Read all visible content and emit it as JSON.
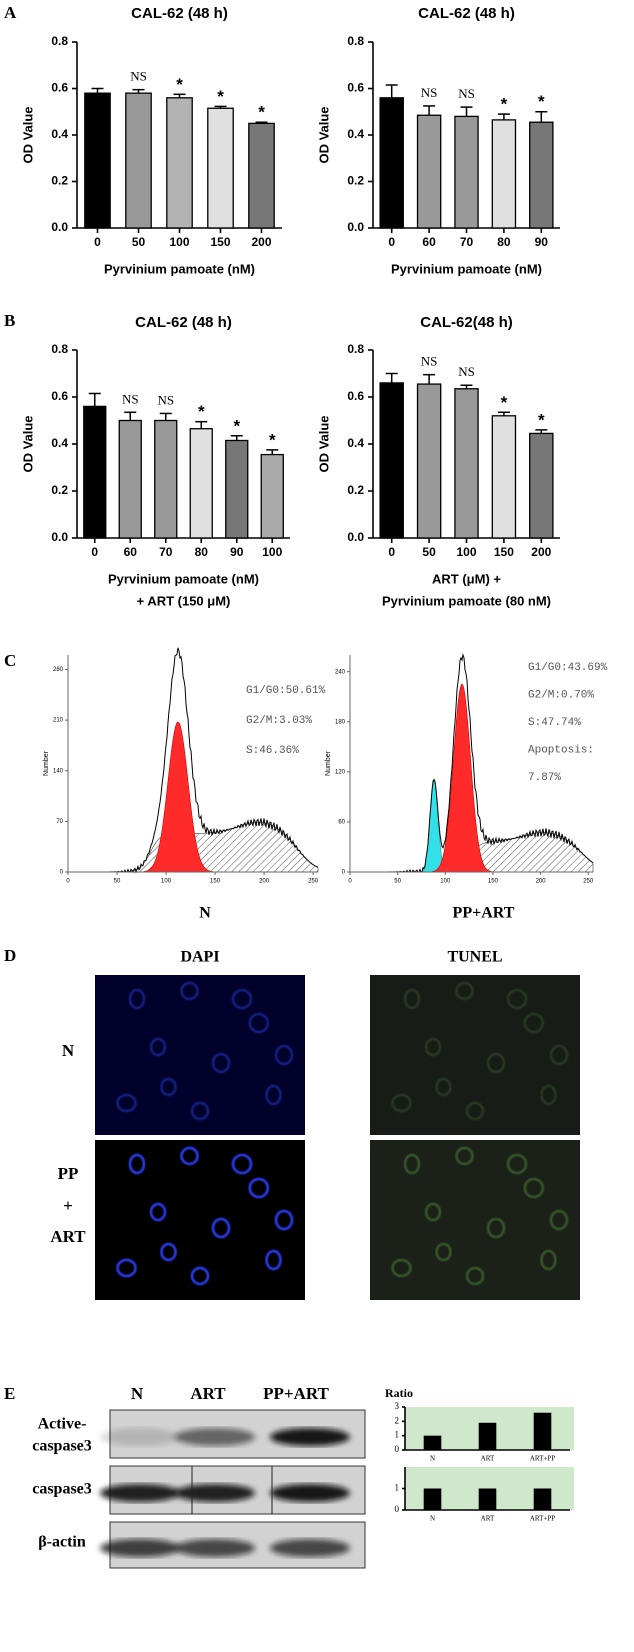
{
  "panel_labels": [
    "A",
    "B",
    "C",
    "D",
    "E"
  ],
  "chart_data": [
    {
      "type": "bar",
      "title": "CAL-62 (48 h)",
      "ylabel": "OD Value",
      "xlabel": [
        "Pyrvinium pamoate (nM)"
      ],
      "categories": [
        "0",
        "50",
        "100",
        "150",
        "200"
      ],
      "values": [
        0.58,
        0.58,
        0.56,
        0.515,
        0.45
      ],
      "errors": [
        0.02,
        0.015,
        0.015,
        0.008,
        0.005
      ],
      "annotations": [
        null,
        "NS",
        "*",
        "*",
        "*"
      ],
      "colors": [
        "#000000",
        "#999999",
        "#b3b3b3",
        "#e0e0e0",
        "#777777"
      ],
      "ylim": [
        0,
        0.8
      ],
      "yticks": [
        {
          "value": 0,
          "label": "0.0"
        },
        0.2,
        0.4,
        0.6,
        0.8
      ]
    },
    {
      "type": "bar",
      "title": "CAL-62 (48 h)",
      "ylabel": "OD Value",
      "xlabel": [
        "Pyrvinium pamoate (nM)"
      ],
      "categories": [
        "0",
        "60",
        "70",
        "80",
        "90"
      ],
      "values": [
        0.56,
        0.485,
        0.48,
        0.465,
        0.455
      ],
      "errors": [
        0.055,
        0.04,
        0.04,
        0.025,
        0.045
      ],
      "annotations": [
        null,
        "NS",
        "NS",
        "*",
        "*"
      ],
      "colors": [
        "#000000",
        "#999999",
        "#999999",
        "#e0e0e0",
        "#777777"
      ],
      "ylim": [
        0,
        0.8
      ],
      "yticks": [
        {
          "value": 0,
          "label": "0.0"
        },
        0.2,
        0.4,
        0.6,
        0.8
      ]
    },
    {
      "type": "bar",
      "title": "CAL-62 (48 h)",
      "ylabel": "OD Value",
      "xlabel": [
        "Pyrvinium pamoate (nM)",
        "+ ART (150 μM)"
      ],
      "categories": [
        "0",
        "60",
        "70",
        "80",
        "90",
        "100"
      ],
      "values": [
        0.56,
        0.5,
        0.5,
        0.465,
        0.415,
        0.355
      ],
      "errors": [
        0.055,
        0.035,
        0.03,
        0.03,
        0.02,
        0.02
      ],
      "annotations": [
        null,
        "NS",
        "NS",
        "*",
        "*",
        "*"
      ],
      "colors": [
        "#000000",
        "#999999",
        "#999999",
        "#e0e0e0",
        "#777777",
        "#aaaaaa"
      ],
      "ylim": [
        0,
        0.8
      ],
      "yticks": [
        {
          "value": 0,
          "label": "0.0"
        },
        0.2,
        0.4,
        0.6,
        0.8
      ]
    },
    {
      "type": "bar",
      "title": "CAL-62(48 h)",
      "ylabel": "OD Value",
      "xlabel": [
        "ART (μM) +",
        "Pyrvinium pamoate (80 nM)"
      ],
      "categories": [
        "0",
        "50",
        "100",
        "150",
        "200"
      ],
      "values": [
        0.66,
        0.655,
        0.635,
        0.52,
        0.445
      ],
      "errors": [
        0.04,
        0.04,
        0.015,
        0.015,
        0.015
      ],
      "annotations": [
        null,
        "NS",
        "NS",
        "*",
        "*"
      ],
      "colors": [
        "#000000",
        "#999999",
        "#999999",
        "#e0e0e0",
        "#777777"
      ],
      "ylim": [
        0,
        0.8
      ],
      "yticks": [
        {
          "value": 0,
          "label": "0.0"
        },
        0.2,
        0.4,
        0.6,
        0.8
      ]
    },
    {
      "type": "flow",
      "xlabel": "N",
      "ylabel": "Number",
      "annotations": [
        "G1/G0:50.61%",
        "G2/M:3.03%",
        "S:46.36%"
      ],
      "xlim": [
        0,
        255
      ],
      "xticks": [
        0,
        50,
        100,
        150,
        200,
        250
      ],
      "ylim": [
        0,
        300
      ],
      "yticks": [
        0,
        70,
        140,
        210,
        280
      ]
    },
    {
      "type": "flow",
      "xlabel": "PP+ART",
      "ylabel": "Number",
      "annotations": [
        "G1/G0:43.69%",
        "G2/M:0.70%",
        "S:47.74%",
        "Apoptosis:",
        "7.87%"
      ],
      "xlim": [
        0,
        255
      ],
      "xticks": [
        0,
        50,
        100,
        150,
        200,
        250
      ],
      "ylim": [
        0,
        260
      ],
      "yticks": [
        0,
        60,
        120,
        180,
        240
      ]
    },
    {
      "type": "bar",
      "title": "Ratio",
      "categories": [
        "N",
        "ART",
        "ART+PP"
      ],
      "values": [
        1,
        1.9,
        2.6
      ],
      "color": "#000000",
      "background": "#cfe8cc",
      "ylim": [
        0,
        3
      ],
      "yticks": [
        0,
        1,
        2,
        3
      ]
    },
    {
      "type": "bar",
      "categories": [
        "N",
        "ART",
        "ART+PP"
      ],
      "values": [
        1,
        1,
        1
      ],
      "color": "#000000",
      "background": "#cfe8cc",
      "ylim": [
        0,
        2
      ],
      "yticks": [
        0,
        1
      ]
    }
  ],
  "microscopy": {
    "columns": [
      "DAPI",
      "TUNEL"
    ],
    "rows": [
      [
        "N"
      ],
      [
        "PP",
        "+",
        "ART"
      ]
    ]
  },
  "western_blot": {
    "lanes": [
      "N",
      "ART",
      "PP+ART"
    ],
    "rows": [
      [
        "Active-",
        "caspase3"
      ],
      [
        "caspase3"
      ],
      [
        "β-actin"
      ]
    ]
  }
}
